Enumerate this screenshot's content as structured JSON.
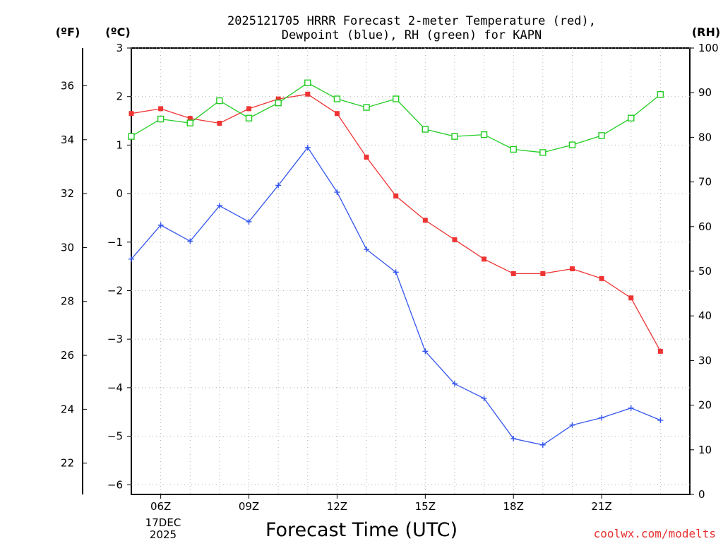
{
  "chart_data": {
    "type": "line",
    "title_lines": [
      "2025121705 HRRR Forecast 2-meter Temperature (red),",
      "Dewpoint (blue), RH (green) for KAPN"
    ],
    "x_axis_label": "Forecast Time (UTC)",
    "x_range_hours": [
      5,
      24
    ],
    "x_ticks": [
      {
        "hour": 6,
        "label": "06Z"
      },
      {
        "hour": 9,
        "label": "09Z"
      },
      {
        "hour": 12,
        "label": "12Z"
      },
      {
        "hour": 15,
        "label": "15Z"
      },
      {
        "hour": 18,
        "label": "18Z"
      },
      {
        "hour": 21,
        "label": "21Z"
      }
    ],
    "date_label_lines": [
      "17DEC",
      "2025"
    ],
    "y_left_c": {
      "unit_label": "(ºC)",
      "range": [
        -6.2,
        3.0
      ],
      "ticks": [
        3,
        2,
        1,
        0,
        -1,
        -2,
        -3,
        -4,
        -5,
        -6
      ],
      "tick_labels": [
        "3",
        "2",
        "1",
        "0",
        "−1",
        "−2",
        "−3",
        "−4",
        "−5",
        "−6"
      ]
    },
    "y_left_f": {
      "unit_label": "(ºF)",
      "ticks": [
        36,
        34,
        32,
        30,
        28,
        26,
        24,
        22
      ],
      "tick_labels": [
        "36",
        "34",
        "32",
        "30",
        "28",
        "26",
        "24",
        "22"
      ]
    },
    "y_right_rh": {
      "unit_label": "(RH)",
      "range": [
        0,
        100
      ],
      "ticks": [
        100,
        90,
        80,
        70,
        60,
        50,
        40,
        30,
        20,
        10,
        0
      ],
      "tick_labels": [
        "100",
        "90",
        "80",
        "70",
        "60",
        "50",
        "40",
        "30",
        "20",
        "10",
        "0"
      ]
    },
    "grid": true,
    "series": [
      {
        "name": "Temperature (°C)",
        "axis": "c",
        "color": "#ee3333",
        "marker": "filled-square",
        "x": [
          5,
          6,
          7,
          8,
          9,
          10,
          11,
          12,
          13,
          14,
          15,
          16,
          17,
          18,
          19,
          20,
          21,
          22,
          23
        ],
        "values": [
          1.65,
          1.75,
          1.55,
          1.45,
          1.75,
          1.95,
          2.05,
          1.65,
          0.75,
          -0.05,
          -0.55,
          -0.95,
          -1.35,
          -1.65,
          -1.65,
          -1.55,
          -1.75,
          -2.15,
          -3.25
        ]
      },
      {
        "name": "Dewpoint (°C)",
        "axis": "c",
        "color": "#3355ee",
        "marker": "plus",
        "x": [
          5,
          6,
          7,
          8,
          9,
          10,
          11,
          12,
          13,
          14,
          15,
          16,
          17,
          18,
          19,
          20,
          21,
          22,
          23
        ],
        "values": [
          -1.35,
          -0.65,
          -0.98,
          -0.25,
          -0.58,
          0.17,
          0.95,
          0.03,
          -1.15,
          -1.62,
          -3.25,
          -3.92,
          -4.22,
          -5.05,
          -5.18,
          -4.77,
          -4.62,
          -4.42,
          -4.67
        ]
      },
      {
        "name": "RH (%)",
        "axis": "rh",
        "color": "#22cc22",
        "marker": "open-square",
        "x": [
          5,
          6,
          7,
          8,
          9,
          10,
          11,
          12,
          13,
          14,
          15,
          16,
          17,
          18,
          19,
          20,
          21,
          22,
          23
        ],
        "values": [
          80.2,
          84.1,
          83.2,
          88.2,
          84.3,
          87.7,
          92.2,
          88.6,
          86.7,
          88.6,
          81.8,
          80.2,
          80.6,
          77.3,
          76.6,
          78.3,
          80.4,
          84.3,
          89.6
        ]
      }
    ],
    "credit": "coolwx.com/modelts"
  }
}
